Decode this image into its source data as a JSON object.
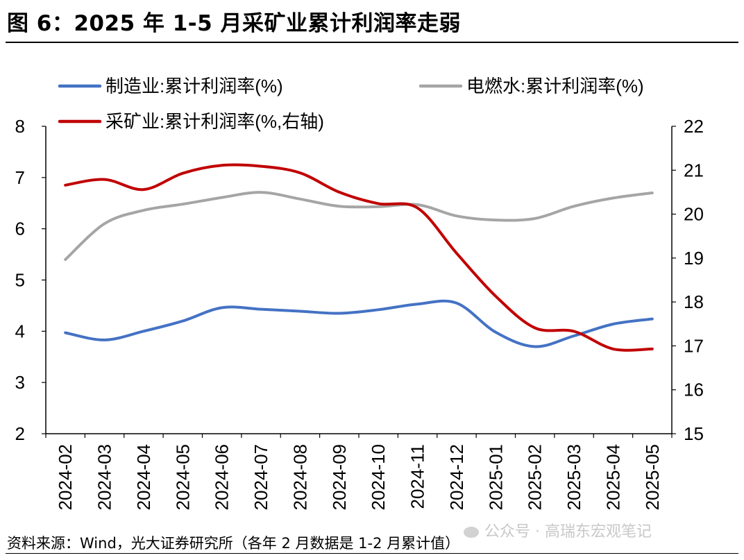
{
  "title": "图 6：2025 年 1-5 月采矿业累计利润率走弱",
  "source": "资料来源：Wind，光大证券研究所（各年 2 月数据是 1-2 月累计值）",
  "watermark": "公众号 · 高瑞东宏观笔记",
  "chart_data": {
    "type": "line",
    "categories": [
      "2024-02",
      "2024-03",
      "2024-04",
      "2024-05",
      "2024-06",
      "2024-07",
      "2024-08",
      "2024-09",
      "2024-10",
      "2024-11",
      "2024-12",
      "2025-01",
      "2025-02",
      "2025-03",
      "2025-04",
      "2025-05"
    ],
    "y_left": {
      "min": 2,
      "max": 8,
      "ticks": [
        2,
        3,
        4,
        5,
        6,
        7,
        8
      ]
    },
    "y_right": {
      "min": 15,
      "max": 22,
      "ticks": [
        15,
        16,
        17,
        18,
        19,
        20,
        21,
        22
      ]
    },
    "legend_placement": "top",
    "grid": false,
    "series": [
      {
        "name": "制造业:累计利润率(%)",
        "axis": "left",
        "color": "#4472C4",
        "values": [
          3.97,
          3.83,
          4.0,
          4.2,
          4.46,
          4.43,
          4.39,
          4.35,
          4.42,
          4.53,
          4.55,
          3.98,
          3.7,
          3.91,
          4.14,
          4.24
        ]
      },
      {
        "name": "电燃水:累计利润率(%)",
        "axis": "left",
        "color": "#A5A5A5",
        "values": [
          5.4,
          6.1,
          6.36,
          6.48,
          6.61,
          6.71,
          6.58,
          6.44,
          6.43,
          6.47,
          6.25,
          6.17,
          6.2,
          6.44,
          6.6,
          6.7
        ]
      },
      {
        "name": "采矿业:累计利润率(%,右轴)",
        "axis": "right",
        "color": "#C00000",
        "values": [
          20.66,
          20.79,
          20.56,
          20.93,
          21.11,
          21.09,
          20.94,
          20.5,
          20.24,
          20.14,
          19.11,
          18.13,
          17.41,
          17.33,
          16.93,
          16.93
        ]
      }
    ]
  }
}
